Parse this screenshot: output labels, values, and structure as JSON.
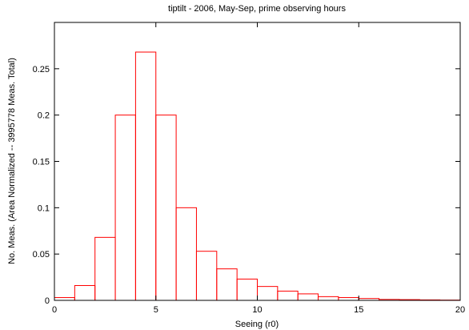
{
  "chart_data": {
    "type": "bar",
    "title": "tiptilt - 2006, May-Sep, prime observing hours",
    "xlabel": "Seeing (r0)",
    "ylabel": "No. Meas. (Area Normalized -- 3995778 Meas. Total)",
    "xlim": [
      0,
      20
    ],
    "ylim": [
      0,
      0.3
    ],
    "x_ticks": [
      "0",
      "5",
      "10",
      "15",
      "20"
    ],
    "y_ticks": [
      "0",
      "0.05",
      "0.1",
      "0.15",
      "0.2",
      "0.25"
    ],
    "grid": false,
    "bar_color": "#ff0000",
    "bins": [
      {
        "x0": 0,
        "x1": 1,
        "value": 0.003
      },
      {
        "x0": 1,
        "x1": 2,
        "value": 0.016
      },
      {
        "x0": 2,
        "x1": 3,
        "value": 0.068
      },
      {
        "x0": 3,
        "x1": 4,
        "value": 0.2
      },
      {
        "x0": 4,
        "x1": 5,
        "value": 0.268
      },
      {
        "x0": 5,
        "x1": 6,
        "value": 0.2
      },
      {
        "x0": 6,
        "x1": 7,
        "value": 0.1
      },
      {
        "x0": 7,
        "x1": 8,
        "value": 0.053
      },
      {
        "x0": 8,
        "x1": 9,
        "value": 0.034
      },
      {
        "x0": 9,
        "x1": 10,
        "value": 0.023
      },
      {
        "x0": 10,
        "x1": 11,
        "value": 0.015
      },
      {
        "x0": 11,
        "x1": 12,
        "value": 0.01
      },
      {
        "x0": 12,
        "x1": 13,
        "value": 0.007
      },
      {
        "x0": 13,
        "x1": 14,
        "value": 0.004
      },
      {
        "x0": 14,
        "x1": 15,
        "value": 0.003
      },
      {
        "x0": 15,
        "x1": 16,
        "value": 0.002
      },
      {
        "x0": 16,
        "x1": 17,
        "value": 0.001
      },
      {
        "x0": 17,
        "x1": 18,
        "value": 0.0008
      },
      {
        "x0": 18,
        "x1": 19,
        "value": 0.0005
      },
      {
        "x0": 19,
        "x1": 20,
        "value": 0.0003
      }
    ]
  }
}
